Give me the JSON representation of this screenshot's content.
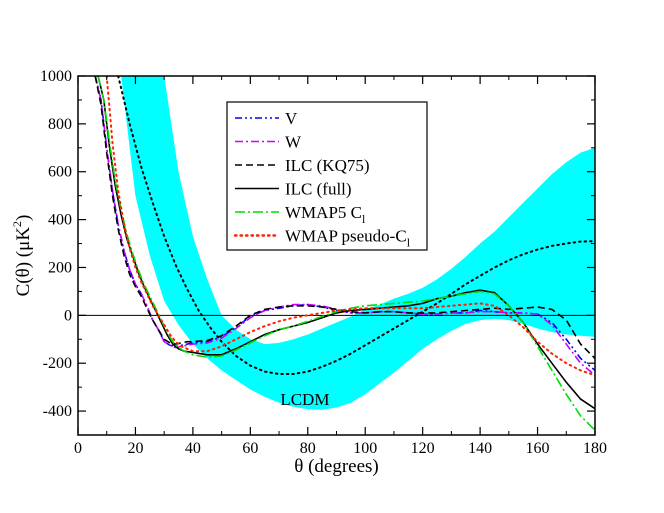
{
  "chart_data": {
    "type": "line",
    "title": "",
    "xlabel": "θ (degrees)",
    "ylabel_main": "C(θ) (μK",
    "ylabel_sup": "2",
    "ylabel_close": ")",
    "xlim": [
      0,
      180
    ],
    "ylim": [
      -500,
      1000
    ],
    "xticks": [
      0,
      20,
      40,
      60,
      80,
      100,
      120,
      140,
      160,
      180
    ],
    "yticks": [
      -400,
      -200,
      0,
      200,
      400,
      600,
      800,
      1000
    ],
    "grid": false,
    "legend_position": "top-center",
    "annotation": {
      "text": "LCDM",
      "x": 79,
      "y": -350
    },
    "band": {
      "name": "LCDM cosmic-variance band",
      "color": "#00ffff",
      "x": [
        5,
        10,
        15,
        20,
        25,
        30,
        35,
        40,
        45,
        50,
        55,
        60,
        65,
        70,
        75,
        80,
        85,
        90,
        95,
        100,
        105,
        110,
        115,
        120,
        125,
        130,
        135,
        140,
        145,
        150,
        155,
        160,
        165,
        170,
        175,
        180
      ],
      "upper": [
        1000,
        1000,
        1000,
        1000,
        1000,
        1000,
        600,
        330,
        150,
        0,
        -60,
        -100,
        -120,
        -115,
        -100,
        -80,
        -55,
        -30,
        -5,
        25,
        45,
        70,
        90,
        115,
        150,
        195,
        245,
        300,
        350,
        410,
        470,
        530,
        590,
        640,
        680,
        700
      ],
      "lower": [
        1000,
        1000,
        1000,
        500,
        250,
        60,
        -40,
        -120,
        -180,
        -230,
        -270,
        -310,
        -340,
        -365,
        -382,
        -392,
        -395,
        -385,
        -365,
        -330,
        -285,
        -240,
        -190,
        -140,
        -100,
        -65,
        -35,
        -20,
        -15,
        -20,
        -35,
        -55,
        -70,
        -80,
        -85,
        -90
      ]
    },
    "series": [
      {
        "name": "LCDM",
        "legend": false,
        "color": "#000000",
        "dash": "dotted",
        "x": [
          14,
          18,
          22,
          26,
          30,
          34,
          38,
          42,
          46,
          50,
          55,
          60,
          65,
          70,
          75,
          80,
          85,
          90,
          95,
          100,
          105,
          110,
          115,
          120,
          125,
          130,
          135,
          140,
          145,
          150,
          155,
          160,
          165,
          170,
          175,
          180
        ],
        "y": [
          1000,
          800,
          620,
          470,
          330,
          210,
          110,
          20,
          -50,
          -110,
          -170,
          -210,
          -235,
          -245,
          -245,
          -235,
          -215,
          -190,
          -160,
          -125,
          -90,
          -55,
          -20,
          15,
          50,
          90,
          130,
          165,
          200,
          230,
          255,
          275,
          290,
          300,
          308,
          310
        ]
      },
      {
        "name": "V",
        "legend": true,
        "color": "#0000ff",
        "dash": "dash-dot-dot",
        "x": [
          6,
          8,
          10,
          12,
          14,
          16,
          18,
          20,
          22,
          24,
          26,
          28,
          30,
          32,
          34,
          36,
          38,
          40,
          45,
          50,
          55,
          60,
          65,
          70,
          75,
          80,
          85,
          90,
          95,
          100,
          105,
          110,
          115,
          120,
          125,
          130,
          135,
          140,
          145,
          150,
          155,
          160,
          165,
          170,
          175,
          180
        ],
        "y": [
          1000,
          900,
          700,
          520,
          380,
          270,
          190,
          130,
          90,
          40,
          -20,
          -60,
          -110,
          -125,
          -130,
          -125,
          -120,
          -115,
          -110,
          -90,
          -50,
          -5,
          20,
          30,
          40,
          45,
          35,
          20,
          10,
          10,
          15,
          15,
          10,
          5,
          5,
          10,
          10,
          20,
          15,
          10,
          10,
          5,
          -30,
          -100,
          -180,
          -230
        ]
      },
      {
        "name": "W",
        "legend": true,
        "color": "#cc00ff",
        "dash": "dash-dot",
        "x": [
          6,
          8,
          10,
          12,
          14,
          16,
          18,
          20,
          22,
          24,
          26,
          28,
          30,
          32,
          34,
          36,
          38,
          40,
          45,
          50,
          55,
          60,
          65,
          70,
          75,
          80,
          85,
          90,
          95,
          100,
          105,
          110,
          115,
          120,
          125,
          130,
          135,
          140,
          145,
          150,
          155,
          160,
          165,
          170,
          175,
          180
        ],
        "y": [
          1000,
          900,
          700,
          520,
          380,
          270,
          190,
          130,
          90,
          40,
          -20,
          -60,
          -110,
          -125,
          -135,
          -130,
          -125,
          -120,
          -115,
          -95,
          -55,
          -10,
          20,
          35,
          45,
          45,
          40,
          25,
          10,
          10,
          15,
          15,
          10,
          5,
          5,
          10,
          10,
          15,
          15,
          10,
          10,
          5,
          -40,
          -120,
          -200,
          -250
        ]
      },
      {
        "name": "ILC (KQ75)",
        "legend": true,
        "color": "#000000",
        "dash": "dashed",
        "x": [
          6,
          8,
          10,
          12,
          14,
          16,
          18,
          20,
          22,
          24,
          26,
          28,
          30,
          32,
          34,
          36,
          38,
          40,
          45,
          50,
          55,
          60,
          65,
          70,
          75,
          80,
          85,
          90,
          95,
          100,
          105,
          110,
          115,
          120,
          125,
          130,
          135,
          140,
          145,
          150,
          155,
          160,
          165,
          170,
          175,
          180
        ],
        "y": [
          1000,
          880,
          680,
          500,
          360,
          250,
          170,
          120,
          80,
          30,
          -20,
          -60,
          -100,
          -115,
          -120,
          -115,
          -110,
          -110,
          -105,
          -85,
          -45,
          0,
          25,
          35,
          40,
          40,
          35,
          25,
          15,
          10,
          15,
          15,
          10,
          10,
          10,
          15,
          20,
          25,
          30,
          25,
          30,
          35,
          25,
          -20,
          -120,
          -180
        ]
      },
      {
        "name": "ILC (full)",
        "legend": true,
        "color": "#000000",
        "dash": "solid",
        "x": [
          7,
          9,
          11,
          13,
          15,
          17,
          19,
          21,
          23,
          25,
          27,
          29,
          31,
          33,
          35,
          37,
          40,
          45,
          50,
          55,
          60,
          65,
          70,
          75,
          80,
          85,
          90,
          95,
          100,
          105,
          110,
          115,
          120,
          125,
          130,
          135,
          140,
          145,
          150,
          155,
          160,
          165,
          170,
          175,
          180
        ],
        "y": [
          1000,
          900,
          700,
          540,
          420,
          320,
          250,
          180,
          120,
          70,
          20,
          -30,
          -80,
          -120,
          -140,
          -150,
          -155,
          -165,
          -165,
          -140,
          -110,
          -80,
          -60,
          -45,
          -30,
          -10,
          10,
          20,
          25,
          30,
          35,
          40,
          50,
          70,
          80,
          95,
          105,
          95,
          40,
          -30,
          -120,
          -200,
          -280,
          -350,
          -390
        ]
      },
      {
        "name": "WMAP5 C_l",
        "legend": true,
        "color": "#00dd00",
        "dash": "dash-dot-long",
        "x": [
          7,
          9,
          11,
          13,
          15,
          17,
          19,
          21,
          23,
          25,
          27,
          29,
          31,
          33,
          35,
          37,
          40,
          45,
          50,
          55,
          60,
          65,
          70,
          75,
          80,
          85,
          90,
          95,
          100,
          105,
          110,
          115,
          120,
          125,
          130,
          135,
          140,
          145,
          150,
          155,
          160,
          165,
          170,
          175,
          180
        ],
        "y": [
          1000,
          900,
          720,
          560,
          440,
          340,
          260,
          190,
          130,
          80,
          30,
          -20,
          -70,
          -110,
          -135,
          -150,
          -165,
          -175,
          -170,
          -145,
          -115,
          -85,
          -60,
          -45,
          -25,
          -5,
          15,
          30,
          40,
          45,
          50,
          55,
          60,
          70,
          80,
          90,
          100,
          90,
          40,
          -30,
          -130,
          -230,
          -330,
          -420,
          -480
        ]
      },
      {
        "name": "WMAP pseudo-C_l",
        "legend": true,
        "color": "#ff2200",
        "dash": "dotted",
        "x": [
          10,
          12,
          14,
          16,
          18,
          20,
          22,
          24,
          26,
          28,
          30,
          32,
          34,
          36,
          40,
          45,
          50,
          55,
          60,
          65,
          70,
          75,
          80,
          85,
          90,
          95,
          100,
          105,
          110,
          115,
          120,
          125,
          130,
          135,
          140,
          145,
          150,
          155,
          160,
          165,
          170,
          175,
          180
        ],
        "y": [
          1000,
          720,
          520,
          380,
          280,
          200,
          140,
          90,
          40,
          0,
          -40,
          -80,
          -110,
          -130,
          -150,
          -150,
          -130,
          -100,
          -70,
          -45,
          -25,
          -10,
          0,
          10,
          20,
          25,
          30,
          30,
          30,
          30,
          30,
          35,
          40,
          45,
          50,
          40,
          0,
          -50,
          -110,
          -160,
          -200,
          -230,
          -250
        ]
      }
    ],
    "legend_entries": [
      {
        "label": "V",
        "sub": ""
      },
      {
        "label": "W",
        "sub": ""
      },
      {
        "label": "ILC (KQ75)",
        "sub": ""
      },
      {
        "label": "ILC (full)",
        "sub": ""
      },
      {
        "label": "WMAP5 C",
        "sub": "l"
      },
      {
        "label": "WMAP pseudo-C",
        "sub": "l"
      }
    ]
  }
}
